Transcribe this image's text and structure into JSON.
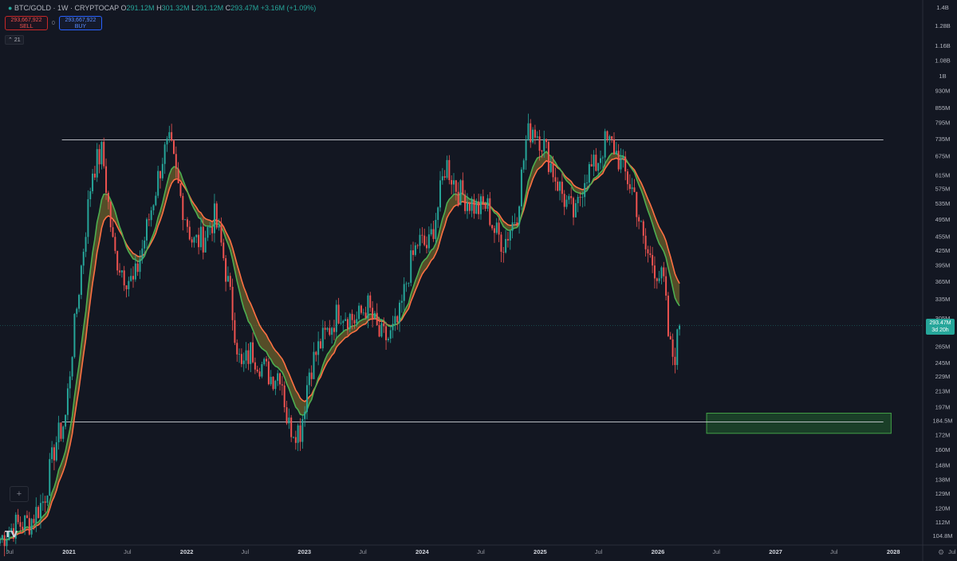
{
  "header": {
    "symbol": "BTC/GOLD · 1W · CRYPTOCAP",
    "open_label": "O",
    "open": "291.12M",
    "high_label": "H",
    "high": "301.32M",
    "low_label": "L",
    "low": "291.12M",
    "close_label": "C",
    "close": "293.47M",
    "change": "+3.16M (+1.09%)"
  },
  "trade": {
    "sell_price": "293,667,922",
    "sell_label": "SELL",
    "spread": "0",
    "buy_price": "293,667,922",
    "buy_label": "BUY"
  },
  "indicator": {
    "label": "21"
  },
  "price_tag": {
    "value": "293.47M",
    "countdown": "3d 20h"
  },
  "colors": {
    "background": "#131722",
    "up": "#26a69a",
    "down": "#ef5350",
    "ma_fast": "#4caf50",
    "ma_slow": "#ff7043",
    "cloud_fill": "#8d7a2e",
    "zone": "#1e4d2b",
    "zone_border": "#43a047",
    "hline": "#cfd2d8",
    "grid": "#1e222d"
  },
  "icons": {
    "crosshair": "crosshair-icon",
    "settings": "gear-icon",
    "logo": "tradingview-logo"
  },
  "chart_data": {
    "type": "candlestick",
    "title": "BTC/GOLD · 1W · CRYPTOCAP",
    "y_scale": "log",
    "y_unit": "M",
    "ylim": [
      100,
      1450
    ],
    "y_ticks": [
      "1.4B",
      "1.28B",
      "1.16B",
      "1.08B",
      "1B",
      "930M",
      "855M",
      "795M",
      "735M",
      "675M",
      "615M",
      "575M",
      "535M",
      "495M",
      "455M",
      "425M",
      "395M",
      "365M",
      "335M",
      "305M",
      "265M",
      "245M",
      "229M",
      "213M",
      "197M",
      "184.5M",
      "172M",
      "160M",
      "148M",
      "138M",
      "129M",
      "120M",
      "112M",
      "104.8M"
    ],
    "y_tick_values": [
      1400,
      1280,
      1160,
      1080,
      1000,
      930,
      855,
      795,
      735,
      675,
      615,
      575,
      535,
      495,
      455,
      425,
      395,
      365,
      335,
      305,
      265,
      245,
      229,
      213,
      197,
      184.5,
      172,
      160,
      148,
      138,
      129,
      120,
      112,
      104.8
    ],
    "x_range": [
      "2020-06-01",
      "2028-04-01"
    ],
    "x_ticks": [
      "Jul",
      "2021",
      "Jul",
      "2022",
      "Jul",
      "2023",
      "Jul",
      "2024",
      "Jul",
      "2025",
      "Jul",
      "2026",
      "Jul",
      "2027",
      "Jul",
      "2028",
      "Jul"
    ],
    "x_tick_dates": [
      "2020-07-01",
      "2021-01-01",
      "2021-07-01",
      "2022-01-01",
      "2022-07-01",
      "2023-01-01",
      "2023-07-01",
      "2024-01-01",
      "2024-07-01",
      "2025-01-01",
      "2025-07-01",
      "2026-01-01",
      "2026-07-01",
      "2027-01-01",
      "2027-07-01",
      "2028-01-01",
      "2028-07-01"
    ],
    "price_path": [
      [
        "2020-06-01",
        103
      ],
      [
        "2020-07-15",
        110
      ],
      [
        "2020-09-01",
        112
      ],
      [
        "2020-10-15",
        125
      ],
      [
        "2020-11-20",
        165
      ],
      [
        "2020-12-20",
        185
      ],
      [
        "2021-01-10",
        260
      ],
      [
        "2021-02-21",
        470
      ],
      [
        "2021-03-14",
        630
      ],
      [
        "2021-04-14",
        690
      ],
      [
        "2021-05-20",
        420
      ],
      [
        "2021-06-20",
        380
      ],
      [
        "2021-07-20",
        360
      ],
      [
        "2021-08-20",
        440
      ],
      [
        "2021-09-10",
        510
      ],
      [
        "2021-10-20",
        680
      ],
      [
        "2021-11-10",
        715
      ],
      [
        "2021-12-10",
        560
      ],
      [
        "2022-01-20",
        440
      ],
      [
        "2022-02-20",
        450
      ],
      [
        "2022-03-28",
        500
      ],
      [
        "2022-04-20",
        430
      ],
      [
        "2022-05-15",
        340
      ],
      [
        "2022-06-18",
        235
      ],
      [
        "2022-07-20",
        260
      ],
      [
        "2022-08-15",
        245
      ],
      [
        "2022-09-20",
        228
      ],
      [
        "2022-10-20",
        235
      ],
      [
        "2022-11-10",
        180
      ],
      [
        "2022-12-20",
        176
      ],
      [
        "2023-01-15",
        235
      ],
      [
        "2023-02-15",
        265
      ],
      [
        "2023-03-20",
        290
      ],
      [
        "2023-04-20",
        318
      ],
      [
        "2023-06-10",
        300
      ],
      [
        "2023-07-15",
        325
      ],
      [
        "2023-08-20",
        280
      ],
      [
        "2023-09-20",
        275
      ],
      [
        "2023-10-20",
        300
      ],
      [
        "2023-11-20",
        385
      ],
      [
        "2023-12-20",
        445
      ],
      [
        "2024-01-20",
        430
      ],
      [
        "2024-02-20",
        530
      ],
      [
        "2024-03-14",
        655
      ],
      [
        "2024-04-20",
        570
      ],
      [
        "2024-05-20",
        545
      ],
      [
        "2024-06-20",
        520
      ],
      [
        "2024-07-20",
        530
      ],
      [
        "2024-08-10",
        470
      ],
      [
        "2024-09-10",
        440
      ],
      [
        "2024-10-20",
        510
      ],
      [
        "2024-11-20",
        740
      ],
      [
        "2024-12-10",
        780
      ],
      [
        "2025-01-10",
        720
      ],
      [
        "2025-02-20",
        600
      ],
      [
        "2025-03-20",
        540
      ],
      [
        "2025-04-20",
        500
      ],
      [
        "2025-05-20",
        620
      ],
      [
        "2025-06-20",
        640
      ],
      [
        "2025-07-20",
        720
      ],
      [
        "2025-08-15",
        710
      ],
      [
        "2025-09-20",
        620
      ],
      [
        "2025-10-20",
        560
      ],
      [
        "2025-11-20",
        430
      ],
      [
        "2025-12-20",
        395
      ],
      [
        "2026-01-20",
        360
      ],
      [
        "2026-02-05",
        265
      ],
      [
        "2026-02-20",
        250
      ],
      [
        "2026-03-10",
        293.47
      ]
    ],
    "series": [
      {
        "name": "",
        "kind": "ma_fast",
        "color": "#4caf50"
      },
      {
        "name": "",
        "kind": "ma_slow",
        "color": "#ff7043"
      }
    ],
    "horizontal_lines": [
      {
        "value": 730,
        "from": "2020-12-10",
        "to": "2027-12-01"
      },
      {
        "value": 183,
        "from": "2020-12-10",
        "to": "2027-12-01"
      }
    ],
    "zone": {
      "y_low": 173,
      "y_high": 191,
      "from": "2026-06-01",
      "to": "2027-12-25"
    },
    "current_price": 293.47,
    "grid": false,
    "legend": "none"
  }
}
